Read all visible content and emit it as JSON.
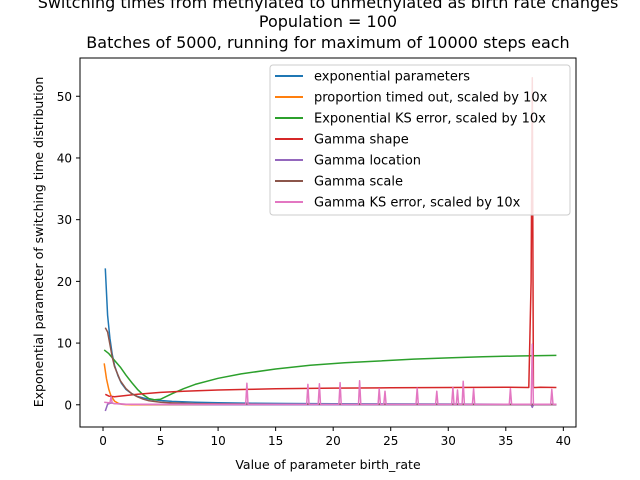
{
  "chart_data": {
    "type": "line",
    "title_lines": [
      "Switching times from methylated to unmethylated as birth rate changes",
      "Population = 100",
      "Batches of 5000, running for maximum of 10000 steps each"
    ],
    "xlabel": "Value of parameter birth_rate",
    "ylabel": "Exponential parameter of switching time distribution",
    "xlim": [
      -2,
      41.1
    ],
    "ylim": [
      -3.6,
      56.2
    ],
    "xticks": [
      0,
      5,
      10,
      15,
      20,
      25,
      30,
      35,
      40
    ],
    "yticks": [
      0,
      10,
      20,
      30,
      40,
      50
    ],
    "grid": false,
    "legend_position": "top-right",
    "series": [
      {
        "name": "exponential parameters",
        "color": "#1f77b4",
        "x": [
          0.2,
          0.4,
          0.6,
          0.8,
          1.0,
          1.3,
          1.6,
          2.0,
          2.5,
          3.0,
          3.5,
          4.0,
          5.0,
          6.0,
          8.0,
          10.0,
          13.0,
          16.0,
          20.0,
          25.0,
          30.0,
          35.0,
          39.4
        ],
        "y": [
          22.1,
          14.5,
          10.8,
          8.2,
          6.4,
          4.7,
          3.5,
          2.5,
          1.8,
          1.35,
          1.1,
          0.9,
          0.7,
          0.55,
          0.42,
          0.33,
          0.26,
          0.21,
          0.17,
          0.14,
          0.12,
          0.1,
          0.09
        ]
      },
      {
        "name": "proportion timed out, scaled by 10x",
        "color": "#ff7f0e",
        "x": [
          0.1,
          0.3,
          0.5,
          0.7,
          1.0,
          1.3,
          1.6,
          2.0,
          2.5,
          3.0,
          4.0,
          5.0,
          39.4
        ],
        "y": [
          6.7,
          4.2,
          2.5,
          1.4,
          0.6,
          0.25,
          0.1,
          0.03,
          0.01,
          0.0,
          0.0,
          0.0,
          0.0
        ]
      },
      {
        "name": "Exponential KS error, scaled by 10x",
        "color": "#2ca02c",
        "x": [
          0.1,
          0.5,
          1.0,
          1.5,
          2.0,
          2.5,
          3.0,
          3.5,
          4.0,
          4.5,
          5.0,
          6.0,
          7.0,
          8.0,
          10.0,
          12.0,
          15.0,
          18.0,
          21.0,
          24.0,
          27.0,
          30.0,
          33.0,
          36.0,
          39.4
        ],
        "y": [
          8.9,
          8.3,
          7.2,
          6.1,
          4.8,
          3.6,
          2.5,
          1.6,
          1.0,
          0.8,
          0.9,
          1.8,
          2.6,
          3.3,
          4.3,
          5.0,
          5.8,
          6.4,
          6.8,
          7.1,
          7.4,
          7.6,
          7.8,
          7.9,
          8.0
        ]
      },
      {
        "name": "Gamma shape",
        "color": "#d62728",
        "x": [
          0.2,
          0.5,
          1.0,
          2.0,
          3.0,
          5.0,
          7.0,
          10.0,
          12.5,
          15.0,
          20.0,
          25.0,
          30.0,
          35.0,
          37.0,
          37.2,
          37.3,
          37.4,
          37.6,
          38.0,
          39.4
        ],
        "y": [
          1.7,
          1.4,
          1.3,
          1.5,
          1.7,
          2.0,
          2.2,
          2.4,
          2.5,
          2.6,
          2.7,
          2.75,
          2.8,
          2.85,
          2.8,
          20.0,
          53.0,
          2.8,
          2.8,
          2.85,
          2.8
        ]
      },
      {
        "name": "Gamma location",
        "color": "#9467bd",
        "x": [
          0.2,
          0.4,
          0.7,
          1.0,
          2.0,
          5.0,
          10.0,
          20.0,
          30.0,
          37.2,
          37.3,
          37.4,
          39.4
        ],
        "y": [
          -1.0,
          0.1,
          0.3,
          0.2,
          0.1,
          0.05,
          0.0,
          0.0,
          0.0,
          0.0,
          -0.4,
          0.0,
          0.0
        ]
      },
      {
        "name": "Gamma scale",
        "color": "#8c564b",
        "x": [
          0.2,
          0.4,
          0.6,
          0.8,
          1.0,
          1.5,
          2.0,
          2.5,
          3.0,
          3.5,
          4.0,
          5.0,
          6.0,
          8.0,
          10.0,
          15.0,
          20.0,
          30.0,
          39.4
        ],
        "y": [
          12.5,
          11.8,
          9.8,
          7.8,
          6.2,
          3.9,
          2.6,
          1.8,
          1.3,
          0.9,
          0.65,
          0.4,
          0.3,
          0.2,
          0.15,
          0.1,
          0.08,
          0.06,
          0.05
        ]
      },
      {
        "name": "Gamma KS error, scaled by 10x",
        "color": "#e377c2",
        "x": [
          0.1,
          0.6,
          0.7,
          0.8,
          1.0,
          2.0,
          5.0,
          10.0,
          12.4,
          12.5,
          12.6,
          17.7,
          17.8,
          17.9,
          18.7,
          18.8,
          18.9,
          20.5,
          20.6,
          20.7,
          22.2,
          22.3,
          22.4,
          23.9,
          24.0,
          24.1,
          24.4,
          24.5,
          24.6,
          27.2,
          27.3,
          27.4,
          28.9,
          29.0,
          29.1,
          30.3,
          30.4,
          30.5,
          30.7,
          30.8,
          30.9,
          31.2,
          31.3,
          31.4,
          32.1,
          32.2,
          32.3,
          35.3,
          35.4,
          35.5,
          37.2,
          37.3,
          37.4,
          38.9,
          39.0,
          39.1,
          39.4
        ],
        "y": [
          0.4,
          0.3,
          1.3,
          0.3,
          0.2,
          0.1,
          0.1,
          0.1,
          0.1,
          3.5,
          0.1,
          0.1,
          3.3,
          0.1,
          0.1,
          3.4,
          0.1,
          0.1,
          3.6,
          0.1,
          0.1,
          3.9,
          0.1,
          0.1,
          2.6,
          0.1,
          0.1,
          2.2,
          0.1,
          0.1,
          2.7,
          0.1,
          0.1,
          2.2,
          0.1,
          0.1,
          2.8,
          0.1,
          0.1,
          2.4,
          0.1,
          0.1,
          3.8,
          0.1,
          0.1,
          2.6,
          0.1,
          0.1,
          2.6,
          0.1,
          0.1,
          9.8,
          0.1,
          0.1,
          2.5,
          0.1,
          0.1
        ]
      }
    ]
  }
}
